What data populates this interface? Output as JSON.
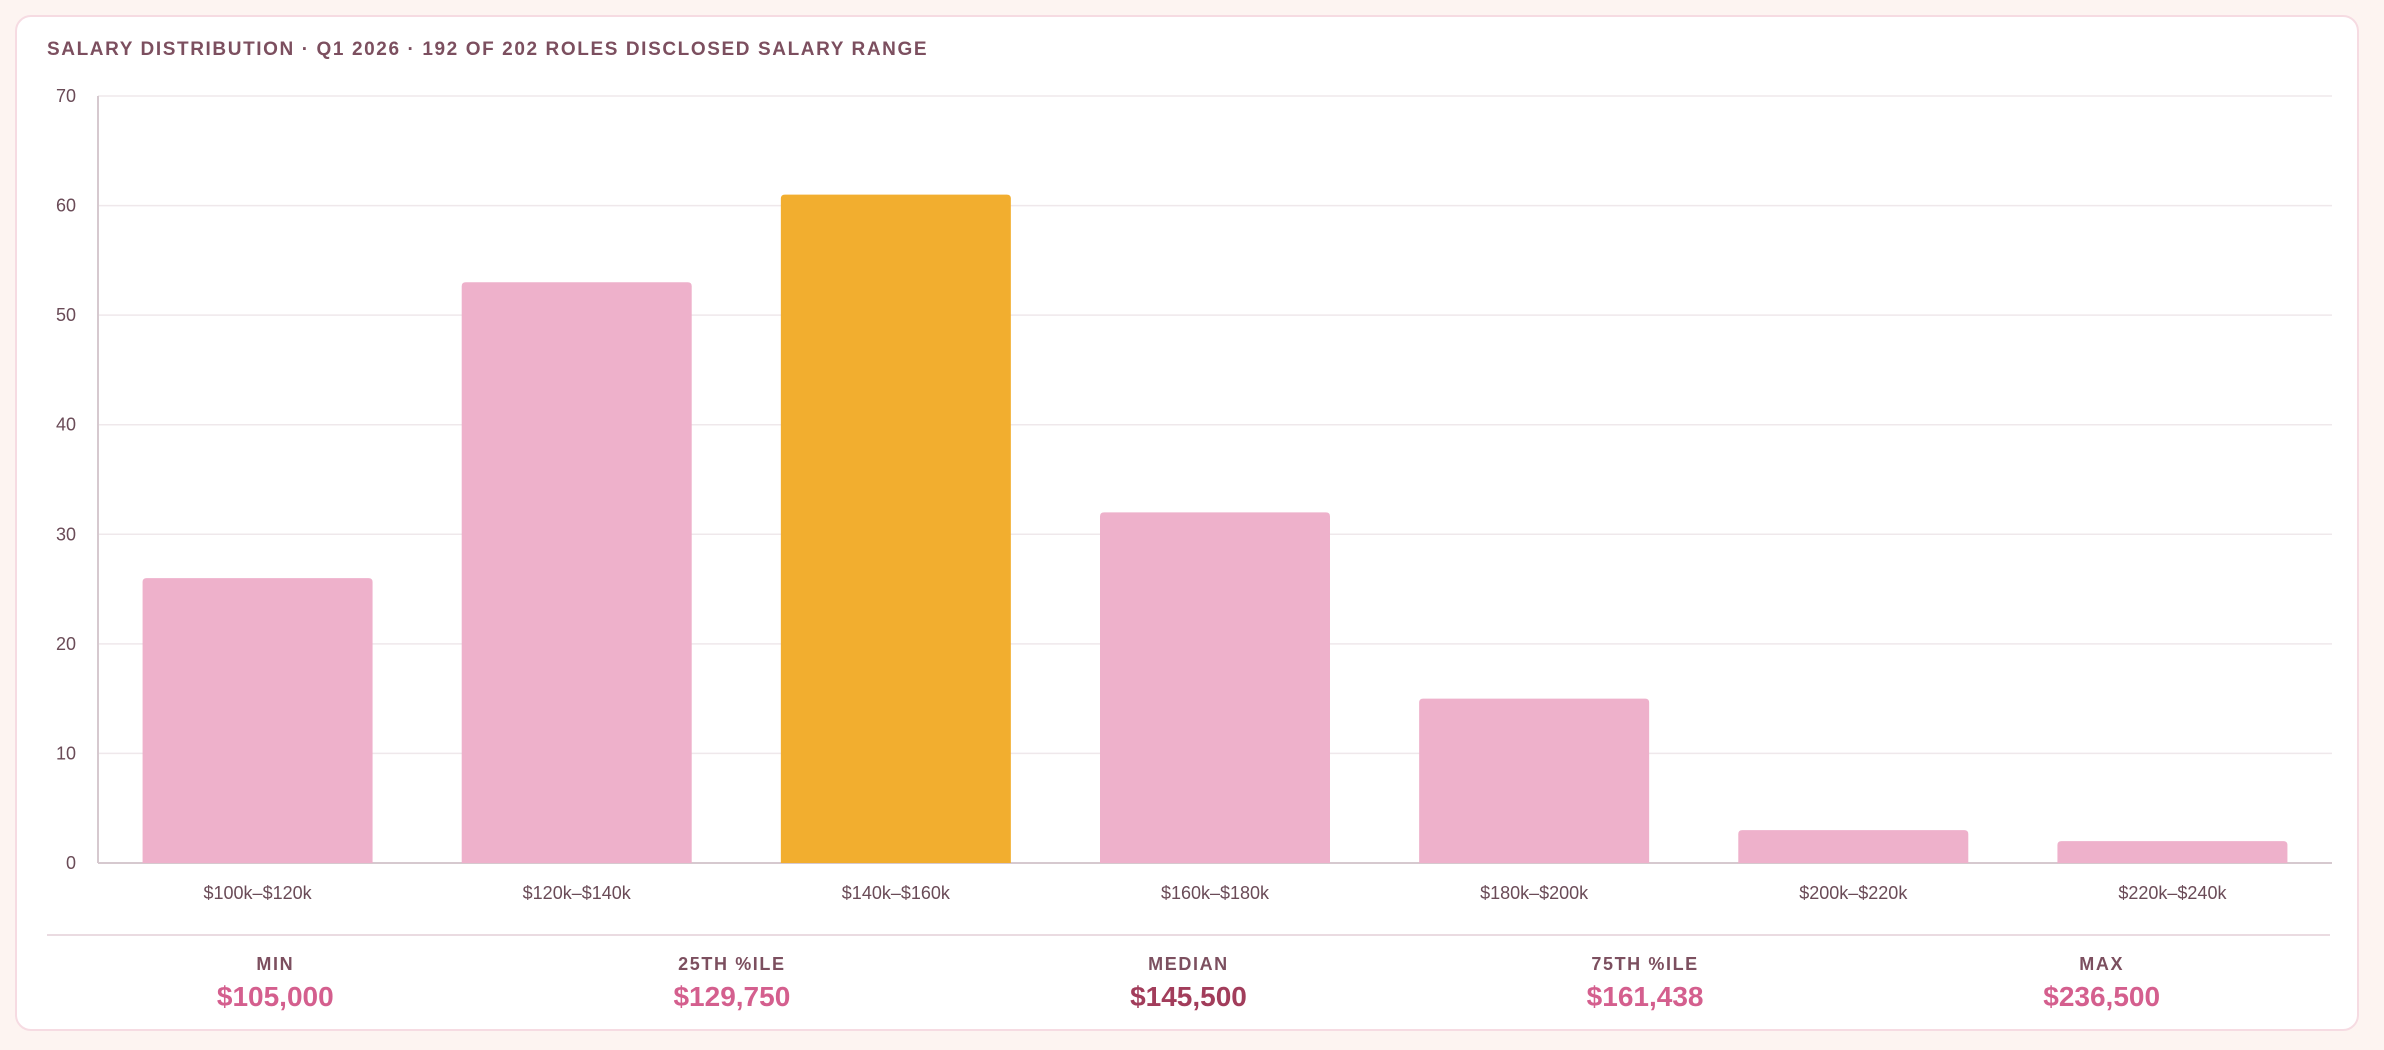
{
  "card": {
    "title": "SALARY DISTRIBUTION · Q1 2026 · 192 OF 202 ROLES DISCLOSED SALARY RANGE"
  },
  "chart_data": {
    "type": "bar",
    "title": "SALARY DISTRIBUTION · Q1 2026 · 192 OF 202 ROLES DISCLOSED SALARY RANGE",
    "categories": [
      "$100k–$120k",
      "$120k–$140k",
      "$140k–$160k",
      "$160k–$180k",
      "$180k–$200k",
      "$200k–$220k",
      "$220k–$240k"
    ],
    "values": [
      26,
      53,
      61,
      32,
      15,
      3,
      2
    ],
    "highlight_category": "$140k–$160k",
    "ylim": [
      0,
      70
    ],
    "yticks": [
      0,
      10,
      20,
      30,
      40,
      50,
      60,
      70
    ],
    "xlabel": "",
    "ylabel": "",
    "grid": true,
    "colors": {
      "bar": "#eeb1cb",
      "highlight": "#f2ae2f",
      "grid": "#efe8eb",
      "axis": "#d6c9cf",
      "tick_text": "#6a4b57"
    }
  },
  "stats": [
    {
      "label": "MIN",
      "value": "$105,000"
    },
    {
      "label": "25TH %ILE",
      "value": "$129,750"
    },
    {
      "label": "MEDIAN",
      "value": "$145,500"
    },
    {
      "label": "75TH %ILE",
      "value": "$161,438"
    },
    {
      "label": "MAX",
      "value": "$236,500"
    }
  ],
  "colors": {
    "background": "#fdf4f1",
    "card_border": "#f6dbe2",
    "title": "#7c4f5f",
    "stat_value": "#d45f8e",
    "stat_median": "#a23d5b"
  }
}
